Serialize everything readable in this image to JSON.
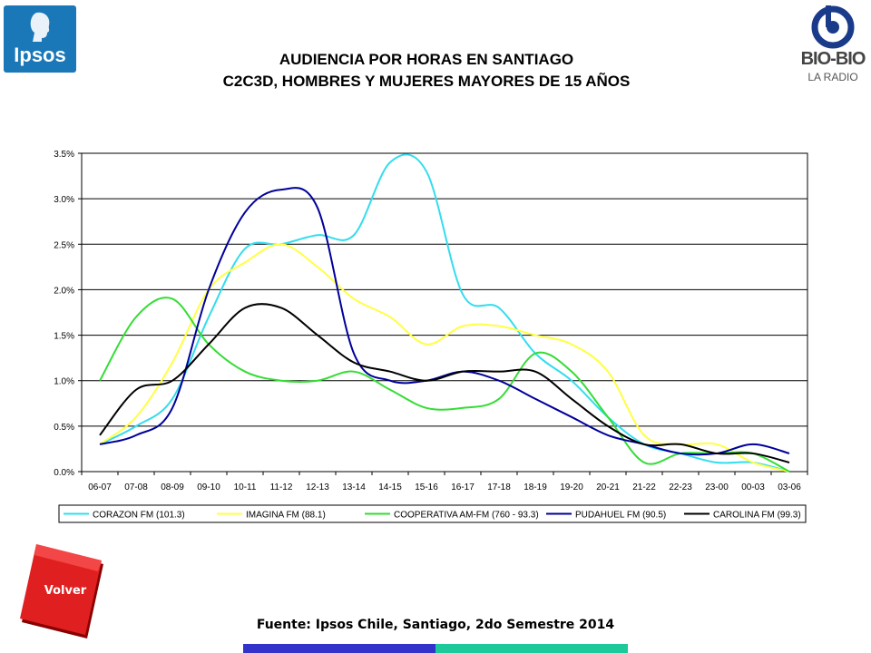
{
  "header": {
    "logo_left": "Ipsos",
    "logo_right_main": "BIO-BIO",
    "logo_right_sub": "LA RADIO",
    "title_line1": "AUDIENCIA POR HORAS EN SANTIAGO",
    "title_line2": "C2C3D, HOMBRES Y MUJERES MAYORES DE 15 AÑOS"
  },
  "footer": {
    "source": "Fuente: Ipsos Chile, Santiago, 2do Semestre 2014",
    "volver_label": "Volver"
  },
  "chart_data": {
    "type": "line",
    "title": "",
    "xlabel": "",
    "ylabel": "",
    "ylim": [
      0,
      3.5
    ],
    "yticks": [
      "0.0%",
      "0.5%",
      "1.0%",
      "1.5%",
      "2.0%",
      "2.5%",
      "3.0%",
      "3.5%"
    ],
    "grid": true,
    "legend_position": "bottom",
    "categories": [
      "06-07",
      "07-08",
      "08-09",
      "09-10",
      "10-11",
      "11-12",
      "12-13",
      "13-14",
      "14-15",
      "15-16",
      "16-17",
      "17-18",
      "18-19",
      "19-20",
      "20-21",
      "21-22",
      "22-23",
      "23-00",
      "00-03",
      "03-06"
    ],
    "series": [
      {
        "name": "CORAZON FM (101.3)",
        "color": "#33ddee",
        "values": [
          0.3,
          0.5,
          0.8,
          1.7,
          2.45,
          2.5,
          2.6,
          2.6,
          3.4,
          3.3,
          1.95,
          1.8,
          1.3,
          1.0,
          0.6,
          0.3,
          0.2,
          0.1,
          0.1,
          0.0
        ]
      },
      {
        "name": "IMAGINA FM (88.1)",
        "color": "#ffff44",
        "values": [
          0.3,
          0.6,
          1.2,
          2.0,
          2.3,
          2.5,
          2.25,
          1.9,
          1.7,
          1.4,
          1.6,
          1.6,
          1.5,
          1.4,
          1.1,
          0.4,
          0.3,
          0.3,
          0.1,
          0.0
        ]
      },
      {
        "name": "COOPERATIVA AM-FM (760 - 93.3)",
        "color": "#33dd33",
        "values": [
          1.0,
          1.7,
          1.9,
          1.4,
          1.1,
          1.0,
          1.0,
          1.1,
          0.9,
          0.7,
          0.7,
          0.8,
          1.3,
          1.1,
          0.6,
          0.1,
          0.2,
          0.2,
          0.2,
          0.0
        ]
      },
      {
        "name": "PUDAHUEL FM (90.5)",
        "color": "#000099",
        "values": [
          0.3,
          0.4,
          0.7,
          2.0,
          2.85,
          3.1,
          2.9,
          1.3,
          1.0,
          1.0,
          1.1,
          1.0,
          0.8,
          0.6,
          0.4,
          0.3,
          0.2,
          0.2,
          0.3,
          0.2
        ]
      },
      {
        "name": "CAROLINA FM (99.3)",
        "color": "#000000",
        "values": [
          0.4,
          0.9,
          1.0,
          1.4,
          1.8,
          1.8,
          1.5,
          1.2,
          1.1,
          1.0,
          1.1,
          1.1,
          1.1,
          0.8,
          0.5,
          0.3,
          0.3,
          0.2,
          0.2,
          0.1
        ]
      }
    ]
  }
}
